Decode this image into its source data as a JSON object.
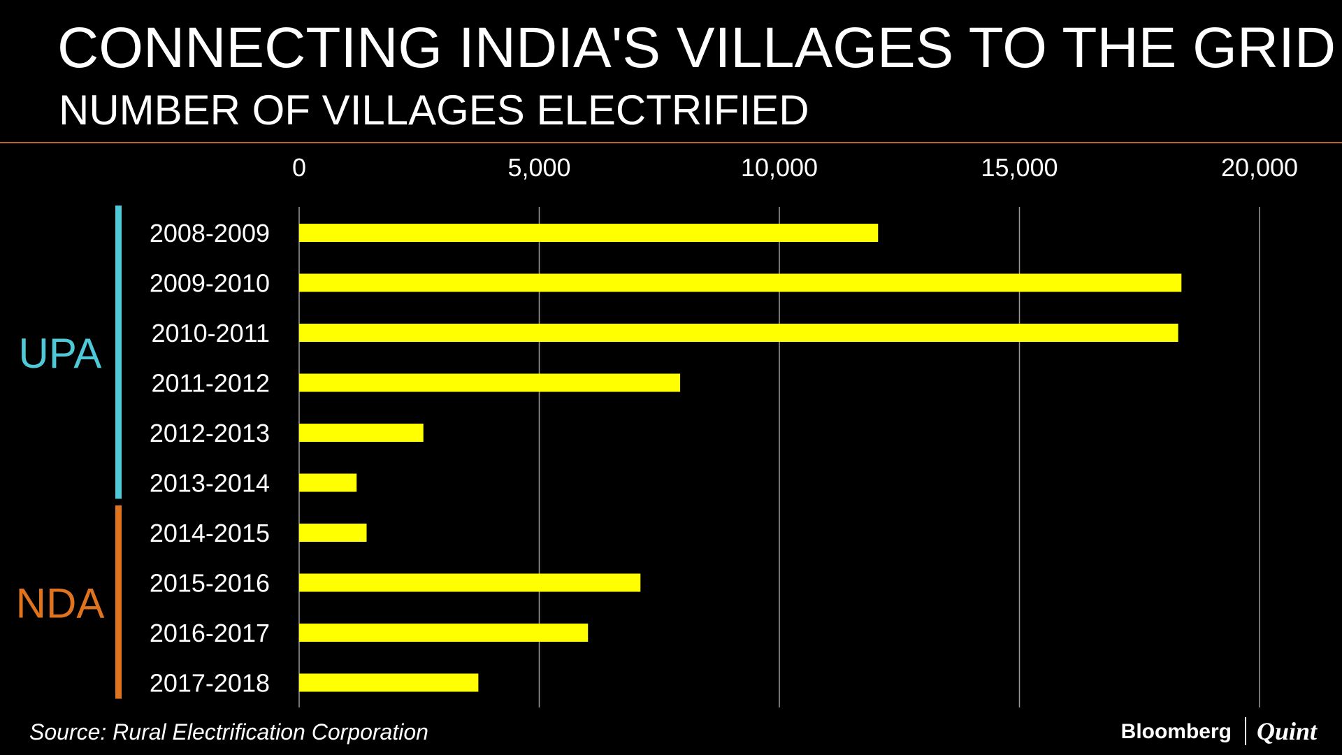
{
  "colors": {
    "background": "#000000",
    "bar": "#ffff00",
    "upa": "#4fc8d8",
    "nda": "#e0731e",
    "divider": "#c0622a",
    "grid": "#9a9a9a",
    "text": "#ffffff"
  },
  "chart_data": {
    "type": "bar",
    "orientation": "horizontal",
    "title": "CONNECTING INDIA'S VILLAGES TO THE GRID",
    "subtitle": "NUMBER OF VILLAGES ELECTRIFIED",
    "categories": [
      "2008-2009",
      "2009-2010",
      "2010-2011",
      "2011-2012",
      "2012-2013",
      "2013-2014",
      "2014-2015",
      "2015-2016",
      "2016-2017",
      "2017-2018"
    ],
    "values": [
      12056,
      18374,
      18306,
      7934,
      2587,
      1197,
      1405,
      7108,
      6015,
      3732
    ],
    "xlim": [
      0,
      20000
    ],
    "x_ticks": [
      "0",
      "5,000",
      "10,000",
      "15,000",
      "20,000"
    ],
    "x_tick_values": [
      0,
      5000,
      10000,
      15000,
      20000
    ],
    "x_axis_position": "top",
    "grid": true,
    "groups": [
      {
        "label": "UPA",
        "categories": [
          "2008-2009",
          "2009-2010",
          "2010-2011",
          "2011-2012",
          "2012-2013",
          "2013-2014"
        ],
        "color": "#4fc8d8"
      },
      {
        "label": "NDA",
        "categories": [
          "2014-2015",
          "2015-2016",
          "2016-2017",
          "2017-2018"
        ],
        "color": "#e0731e"
      }
    ]
  },
  "footer": {
    "source": "Source: Rural Electrification Corporation",
    "brand_primary": "Bloomberg",
    "brand_secondary": "Quint"
  }
}
